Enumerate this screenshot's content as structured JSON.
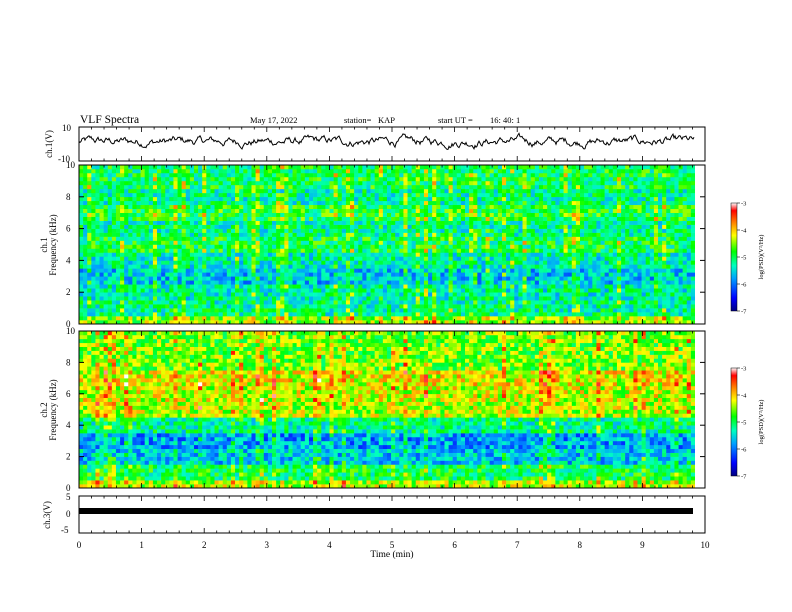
{
  "header": {
    "title": "VLF Spectra",
    "date": "May 17, 2022",
    "station_label": "station=",
    "station": "KAP",
    "start_label": "start  UT  =",
    "start_time": "16: 40: 1"
  },
  "chart_data": [
    {
      "type": "line",
      "ylabel": "ch.1(V)",
      "ylim": [
        -10,
        10
      ],
      "yticks": [
        "10",
        "-10"
      ],
      "xlim": [
        0,
        10
      ],
      "grid": false,
      "description_values": "continuous noisy waveform oscillating roughly between -6 and 8 V, mean near 0 to 2 V",
      "line_color": "#000000"
    },
    {
      "type": "heatmap",
      "ylabel": "Frequency (kHz)",
      "channel_label": "ch.1",
      "ylim": [
        0,
        10
      ],
      "yticks": [
        "0",
        "2",
        "4",
        "6",
        "8",
        "10"
      ],
      "xlim": [
        0,
        10
      ],
      "colorbar": {
        "label": "log(PSD)(V²/Hz)",
        "range": [
          -7,
          -3
        ],
        "ticks": [
          "-3",
          "-4",
          "-5",
          "-6",
          "-7"
        ],
        "colors": [
          "#000080",
          "#0000ff",
          "#00a0ff",
          "#00ffc0",
          "#00ff00",
          "#ffff00",
          "#ff8000",
          "#ff0000",
          "#ffffff"
        ]
      },
      "bands": [
        {
          "freq": [
            0,
            0.5
          ],
          "level": -4.5
        },
        {
          "freq": [
            0.5,
            1.5
          ],
          "level": -5.2
        },
        {
          "freq": [
            1.5,
            2.5
          ],
          "level": -5.3
        },
        {
          "freq": [
            2.5,
            3.5
          ],
          "level": -5.6
        },
        {
          "freq": [
            3.5,
            4.5
          ],
          "level": -5.3
        },
        {
          "freq": [
            4.5,
            5.5
          ],
          "level": -5.0
        },
        {
          "freq": [
            5.5,
            6.5
          ],
          "level": -5.2
        },
        {
          "freq": [
            6.5,
            7.5
          ],
          "level": -4.9
        },
        {
          "freq": [
            7.5,
            8.5
          ],
          "level": -5.2
        },
        {
          "freq": [
            8.5,
            10
          ],
          "level": -5.0
        }
      ]
    },
    {
      "type": "heatmap",
      "ylabel": "Frequency (kHz)",
      "channel_label": "ch.2",
      "ylim": [
        0,
        10
      ],
      "yticks": [
        "0",
        "2",
        "4",
        "6",
        "8",
        "10"
      ],
      "xlim": [
        0,
        10
      ],
      "colorbar": {
        "label": "log(PSD)(V²/Hz)",
        "range": [
          -7,
          -3
        ],
        "ticks": [
          "-3",
          "-4",
          "-5",
          "-6",
          "-7"
        ]
      },
      "bands": [
        {
          "freq": [
            0,
            0.5
          ],
          "level": -4.4
        },
        {
          "freq": [
            0.5,
            1.5
          ],
          "level": -5.0
        },
        {
          "freq": [
            1.5,
            2.5
          ],
          "level": -5.6
        },
        {
          "freq": [
            2.5,
            3.5
          ],
          "level": -5.8
        },
        {
          "freq": [
            3.5,
            4.5
          ],
          "level": -5.2
        },
        {
          "freq": [
            4.5,
            5.5
          ],
          "level": -4.4
        },
        {
          "freq": [
            5.5,
            6.5
          ],
          "level": -4.3
        },
        {
          "freq": [
            6.5,
            7.5
          ],
          "level": -4.2
        },
        {
          "freq": [
            7.5,
            8.5
          ],
          "level": -4.6
        },
        {
          "freq": [
            8.5,
            10
          ],
          "level": -4.6
        }
      ]
    },
    {
      "type": "line",
      "ylabel": "ch.3(V)",
      "ylim": [
        -5,
        5
      ],
      "yticks": [
        "5",
        "0",
        "-5"
      ],
      "xlim": [
        0,
        10
      ],
      "xlabel": "Time (min)",
      "xticks": [
        "0",
        "1",
        "2",
        "3",
        "4",
        "5",
        "6",
        "7",
        "8",
        "9",
        "10"
      ],
      "level_value": 0,
      "line_color": "#000000"
    }
  ]
}
